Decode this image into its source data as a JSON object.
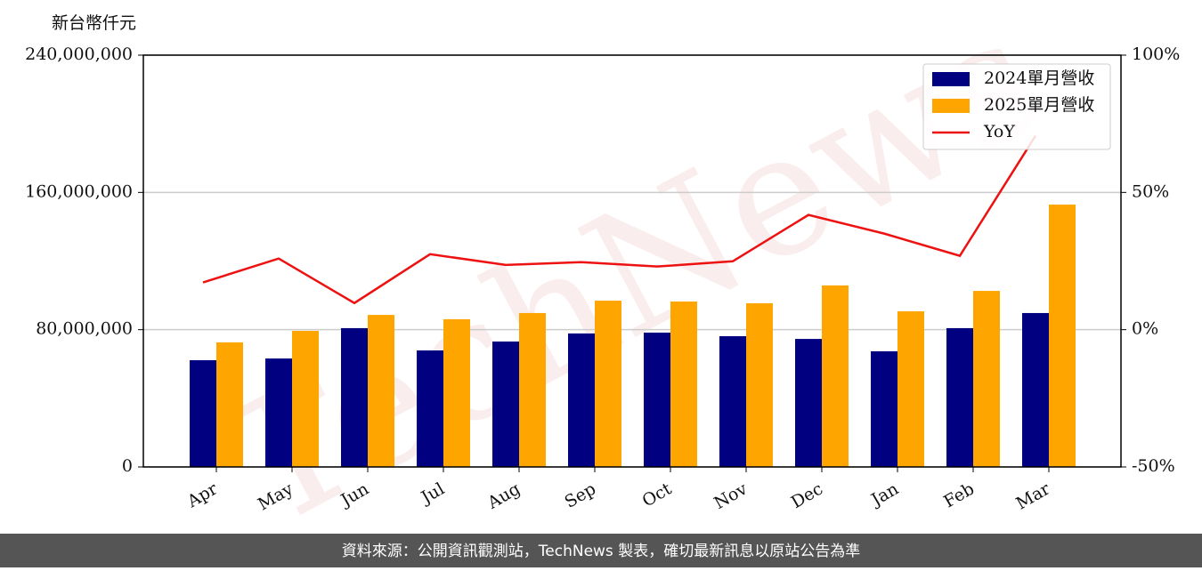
{
  "chart_data": {
    "type": "bar",
    "y_label": "新台幣仟元",
    "watermark": "TechNews",
    "source": "資料來源：公開資訊觀測站，TechNews 製表，確切最新訊息以原站公告為準",
    "categories": [
      "Apr",
      "May",
      "Jun",
      "Jul",
      "Aug",
      "Sep",
      "Oct",
      "Nov",
      "Dec",
      "Jan",
      "Feb",
      "Mar"
    ],
    "series": [
      {
        "name": "2024單月營收",
        "color": "#000080",
        "type": "bar",
        "values": [
          62200000,
          63200000,
          80900000,
          67900000,
          73100000,
          77800000,
          78300000,
          76200000,
          74600000,
          67400000,
          80900000,
          89700000
        ]
      },
      {
        "name": "2025單月營收",
        "color": "#ffa500",
        "type": "bar",
        "values": [
          72600000,
          79300000,
          88600000,
          86100000,
          89700000,
          96900000,
          96400000,
          95400000,
          105800000,
          90700000,
          102600000,
          152900000
        ]
      },
      {
        "name": "YoY",
        "color": "#ee1111",
        "type": "line",
        "axis": "y2",
        "values": [
          17.2,
          25.9,
          9.7,
          27.5,
          23.6,
          24.6,
          23.0,
          24.9,
          41.8,
          35.0,
          26.9,
          70.6
        ]
      }
    ],
    "ylim": [
      0,
      240000000
    ],
    "yticks": [
      0,
      {
        "value": 80000000,
        "label": "80,000,000"
      },
      {
        "value": 160000000,
        "label": "160,000,000"
      },
      {
        "value": 240000000,
        "label": "240,000,000"
      }
    ],
    "y2lim": [
      -50,
      100
    ],
    "y2ticks": [
      {
        "value": -50,
        "label": "-50%"
      },
      {
        "value": 0,
        "label": "0%"
      },
      {
        "value": 50,
        "label": "50%"
      },
      {
        "value": 100,
        "label": "100%"
      }
    ],
    "grid": true,
    "legend": "upper right"
  }
}
